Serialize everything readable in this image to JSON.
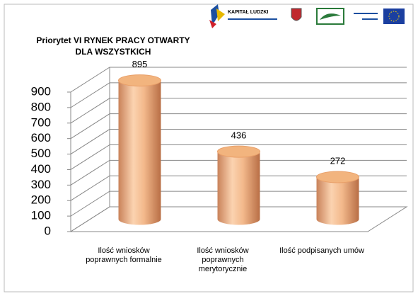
{
  "chart_data": {
    "type": "bar3d",
    "title": [
      "Priorytet VI RYNEK PRACY OTWARTY",
      "DLA WSZYSTKICH"
    ],
    "logo_text": "KAPITAŁ LUDZKI",
    "categories": [
      "Ilość wniosków poprawnych formalnie",
      "Ilość wniosków poprawnych merytorycznie",
      "Ilość podpisanych umów"
    ],
    "values": [
      895,
      436,
      272
    ],
    "color": "#f2b47e",
    "ylim": [
      0,
      900
    ],
    "yticks": [
      0,
      100,
      200,
      300,
      400,
      500,
      600,
      700,
      800,
      900
    ],
    "grid": true
  }
}
